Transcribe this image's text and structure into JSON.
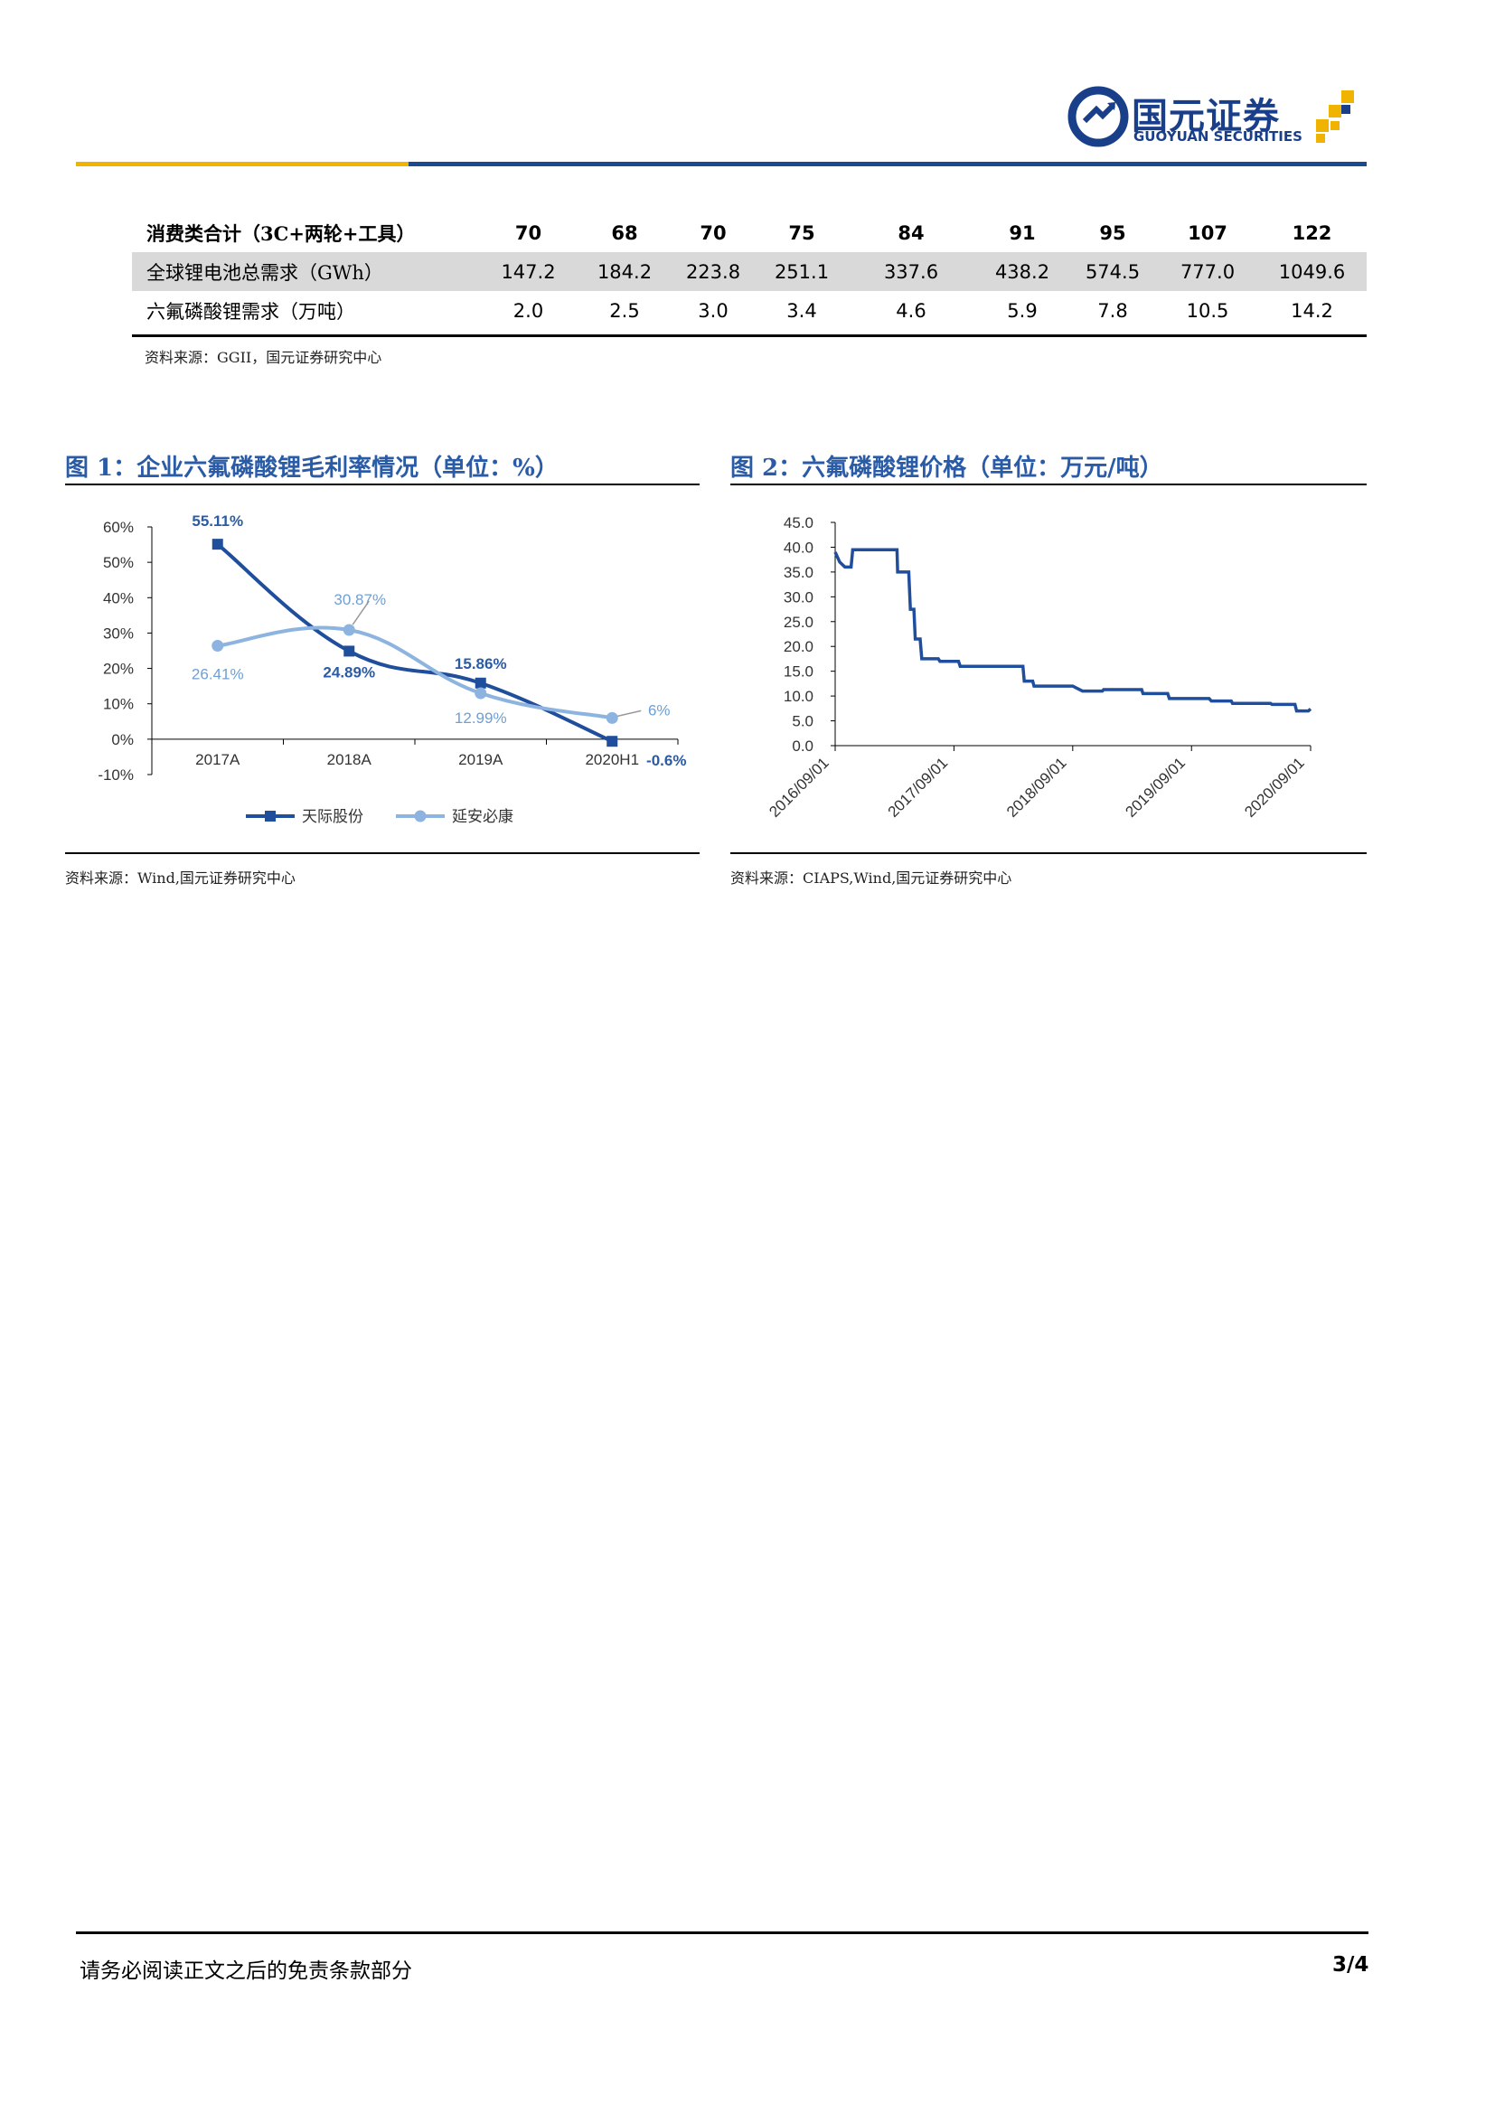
{
  "header": {
    "logo_cn": "国元证券",
    "logo_en": "GUOYUAN SECURITIES",
    "brand_blue": "#1a3f8a",
    "brand_gold": "#f0b400"
  },
  "table": {
    "rows": [
      {
        "label": "消费类合计（3C+两轮+工具）",
        "values": [
          "70",
          "68",
          "70",
          "75",
          "84",
          "91",
          "95",
          "107",
          "122"
        ]
      },
      {
        "label": "全球锂电池总需求（GWh）",
        "values": [
          "147.2",
          "184.2",
          "223.8",
          "251.1",
          "337.6",
          "438.2",
          "574.5",
          "777.0",
          "1049.6"
        ]
      },
      {
        "label": "六氟磷酸锂需求（万吨）",
        "values": [
          "2.0",
          "2.5",
          "3.0",
          "3.4",
          "4.6",
          "5.9",
          "7.8",
          "10.5",
          "14.2"
        ]
      }
    ],
    "source": "资料来源：GGII，国元证券研究中心"
  },
  "figure1": {
    "title": "图 1：企业六氟磷酸锂毛利率情况（单位：%）",
    "source": "资料来源：Wind,国元证券研究中心"
  },
  "figure2": {
    "title": "图 2：六氟磷酸锂价格（单位：万元/吨）",
    "source": "资料来源：CIAPS,Wind,国元证券研究中心"
  },
  "chart_data": [
    {
      "type": "line",
      "categories": [
        "2017A",
        "2018A",
        "2019A",
        "2020H1"
      ],
      "ylim": [
        -10,
        60
      ],
      "yticks": [
        "-10%",
        "0%",
        "10%",
        "20%",
        "30%",
        "40%",
        "50%",
        "60%"
      ],
      "series": [
        {
          "name": "天际股份",
          "values": [
            55.11,
            24.89,
            15.86,
            -0.6
          ],
          "labels": [
            "55.11%",
            "24.89%",
            "15.86%",
            "-0.6%"
          ],
          "color": "#1f4e9c"
        },
        {
          "name": "延安必康",
          "values": [
            26.41,
            30.87,
            12.99,
            6
          ],
          "labels": [
            "26.41%",
            "30.87%",
            "12.99%",
            "6%"
          ],
          "color": "#8db4e0"
        }
      ],
      "legend": "bottom",
      "grid": false
    },
    {
      "type": "line",
      "x_ticks": [
        "2016/09/01",
        "2017/09/01",
        "2018/09/01",
        "2019/09/01",
        "2020/09/01"
      ],
      "ylim": [
        0,
        45
      ],
      "yticks": [
        "0.0",
        "5.0",
        "10.0",
        "15.0",
        "20.0",
        "25.0",
        "30.0",
        "35.0",
        "40.0",
        "45.0"
      ],
      "series": [
        {
          "step": true,
          "color": "#1f4e9c",
          "points": [
            [
              "2016/09/01",
              39.0
            ],
            [
              "2016/09/15",
              37.0
            ],
            [
              "2016/10/01",
              36.0
            ],
            [
              "2016/10/20",
              36.0
            ],
            [
              "2016/10/25",
              39.5
            ],
            [
              "2017/03/10",
              39.5
            ],
            [
              "2017/03/12",
              35.0
            ],
            [
              "2017/04/15",
              35.0
            ],
            [
              "2017/04/20",
              27.5
            ],
            [
              "2017/05/01",
              27.5
            ],
            [
              "2017/05/05",
              21.5
            ],
            [
              "2017/05/20",
              21.5
            ],
            [
              "2017/05/25",
              17.5
            ],
            [
              "2017/07/15",
              17.5
            ],
            [
              "2017/07/20",
              17.0
            ],
            [
              "2017/09/15",
              17.0
            ],
            [
              "2017/09/20",
              16.0
            ],
            [
              "2018/04/01",
              16.0
            ],
            [
              "2018/04/05",
              13.0
            ],
            [
              "2018/05/01",
              13.0
            ],
            [
              "2018/05/05",
              12.0
            ],
            [
              "2018/09/01",
              12.0
            ],
            [
              "2018/10/01",
              11.0
            ],
            [
              "2018/12/01",
              11.0
            ],
            [
              "2018/12/05",
              11.3
            ],
            [
              "2019/04/01",
              11.3
            ],
            [
              "2019/04/05",
              10.5
            ],
            [
              "2019/06/20",
              10.5
            ],
            [
              "2019/06/25",
              9.5
            ],
            [
              "2019/10/25",
              9.5
            ],
            [
              "2019/11/01",
              9.0
            ],
            [
              "2020/01/01",
              9.0
            ],
            [
              "2020/01/05",
              8.5
            ],
            [
              "2020/05/01",
              8.5
            ],
            [
              "2020/05/05",
              8.3
            ],
            [
              "2020/07/15",
              8.3
            ],
            [
              "2020/07/20",
              7.0
            ],
            [
              "2020/08/25",
              7.0
            ],
            [
              "2020/09/01",
              7.4
            ]
          ]
        }
      ],
      "grid": false
    }
  ],
  "footer": {
    "disclaimer": "请务必阅读正文之后的免责条款部分",
    "page": "3/4"
  }
}
